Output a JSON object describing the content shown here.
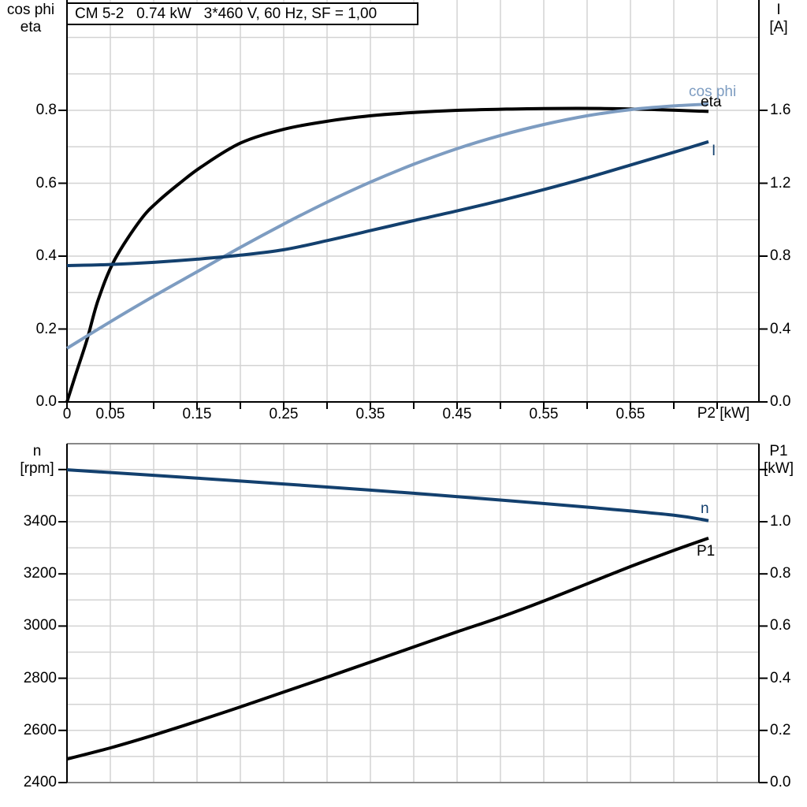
{
  "colors": {
    "background": "#ffffff",
    "grid": "#d3d3d3",
    "axis": "#000000",
    "chart_border_gray": "#878787",
    "eta_curve": "#000000",
    "cos_phi_curve": "#7d9cc1",
    "current_curve": "#13406e",
    "speed_curve": "#13406e",
    "p1_curve": "#000000"
  },
  "chart_data": [
    {
      "id": "top-chart",
      "type": "line",
      "title": "CM 5-2   0.74 kW   3*460 V, 60 Hz, SF = 1,00",
      "x_axis": {
        "label": "P2 [kW]",
        "min": 0,
        "max": 0.8,
        "tick_step": 0.05,
        "labeled_tick_values": [
          0,
          0.05,
          0.15,
          0.25,
          0.35,
          0.45,
          0.55,
          0.65
        ],
        "labeled_tick_labels": [
          "0",
          "0.05",
          "0.15",
          "0.25",
          "0.35",
          "0.45",
          "0.55",
          "0.65"
        ],
        "grid": true
      },
      "y_left": {
        "label_lines": [
          "cos phi",
          "eta"
        ],
        "min": 0,
        "max": 1.1,
        "grid_step": 0.1,
        "ticks": [
          0,
          0.2,
          0.4,
          0.6,
          0.8
        ],
        "tick_labels": [
          "0.0",
          "0.2",
          "0.4",
          "0.6",
          "0.8"
        ],
        "unlabeled_ticks": []
      },
      "y_right": {
        "label_lines": [
          "I",
          "[A]"
        ],
        "min": 0,
        "max": 2.2,
        "ticks": [
          0,
          0.4,
          0.8,
          1.2,
          1.6
        ],
        "tick_labels": [
          "0.0",
          "0.4",
          "0.8",
          "1.2",
          "1.6"
        ],
        "unlabeled_ticks": []
      },
      "series": [
        {
          "name": "eta",
          "axis": "left",
          "color": "#000000",
          "label_pos": [
            889,
            119
          ],
          "points": [
            [
              0,
              0
            ],
            [
              0.01,
              0.075
            ],
            [
              0.023,
              0.17
            ],
            [
              0.036,
              0.28
            ],
            [
              0.055,
              0.39
            ],
            [
              0.085,
              0.5
            ],
            [
              0.105,
              0.55
            ],
            [
              0.13,
              0.6
            ],
            [
              0.155,
              0.645
            ],
            [
              0.2,
              0.71
            ],
            [
              0.25,
              0.748
            ],
            [
              0.3,
              0.77
            ],
            [
              0.35,
              0.785
            ],
            [
              0.4,
              0.794
            ],
            [
              0.45,
              0.8
            ],
            [
              0.5,
              0.803
            ],
            [
              0.55,
              0.805
            ],
            [
              0.62,
              0.805
            ],
            [
              0.68,
              0.802
            ],
            [
              0.74,
              0.797
            ]
          ]
        },
        {
          "name": "cos phi",
          "axis": "left",
          "color": "#7d9cc1",
          "label_pos": [
            874,
            106
          ],
          "points": [
            [
              0,
              0.147
            ],
            [
              0.05,
              0.22
            ],
            [
              0.1,
              0.29
            ],
            [
              0.15,
              0.357
            ],
            [
              0.2,
              0.424
            ],
            [
              0.25,
              0.488
            ],
            [
              0.3,
              0.548
            ],
            [
              0.35,
              0.603
            ],
            [
              0.4,
              0.652
            ],
            [
              0.45,
              0.695
            ],
            [
              0.5,
              0.731
            ],
            [
              0.55,
              0.761
            ],
            [
              0.6,
              0.785
            ],
            [
              0.65,
              0.802
            ],
            [
              0.7,
              0.812
            ],
            [
              0.74,
              0.817
            ]
          ]
        },
        {
          "name": "I",
          "axis": "right",
          "color": "#13406e",
          "label_pos": [
            903,
            181
          ],
          "points": [
            [
              0,
              0.748
            ],
            [
              0.05,
              0.754
            ],
            [
              0.1,
              0.766
            ],
            [
              0.15,
              0.783
            ],
            [
              0.2,
              0.805
            ],
            [
              0.25,
              0.835
            ],
            [
              0.3,
              0.885
            ],
            [
              0.35,
              0.94
            ],
            [
              0.4,
              0.995
            ],
            [
              0.45,
              1.048
            ],
            [
              0.5,
              1.105
            ],
            [
              0.55,
              1.165
            ],
            [
              0.6,
              1.23
            ],
            [
              0.65,
              1.3
            ],
            [
              0.7,
              1.37
            ],
            [
              0.74,
              1.428
            ]
          ]
        }
      ]
    },
    {
      "id": "bottom-chart",
      "type": "line",
      "title": "",
      "x_axis": {
        "label": "",
        "min": 0,
        "max": 0.8,
        "tick_step": 0.05,
        "labeled_tick_values": [],
        "labeled_tick_labels": [],
        "grid": true
      },
      "y_left": {
        "label_lines": [
          "n",
          "[rpm]"
        ],
        "min": 2400,
        "max": 3700,
        "grid_step": 100,
        "ticks": [
          2400,
          2600,
          2800,
          3000,
          3200,
          3400
        ],
        "tick_labels": [
          "2400",
          "2600",
          "2800",
          "3000",
          "3200",
          "3400"
        ],
        "unlabeled_ticks": [
          3600
        ]
      },
      "y_right": {
        "label_lines": [
          "P1",
          "[kW]"
        ],
        "min": 0,
        "max": 1.3,
        "ticks": [
          0,
          0.2,
          0.4,
          0.6,
          0.8,
          1.0
        ],
        "tick_labels": [
          "0.0",
          "0.2",
          "0.4",
          "0.6",
          "0.8",
          "1.0"
        ],
        "unlabeled_ticks": [
          1.2
        ]
      },
      "series": [
        {
          "name": "n",
          "axis": "left",
          "color": "#13406e",
          "label_pos": [
            889,
            635
          ],
          "points": [
            [
              0,
              3599
            ],
            [
              0.1,
              3578
            ],
            [
              0.2,
              3556
            ],
            [
              0.3,
              3533
            ],
            [
              0.4,
              3509
            ],
            [
              0.5,
              3483
            ],
            [
              0.6,
              3456
            ],
            [
              0.7,
              3425
            ],
            [
              0.74,
              3404
            ]
          ]
        },
        {
          "name": "P1",
          "axis": "right",
          "color": "#000000",
          "label_pos": [
            884,
            689
          ],
          "points": [
            [
              0,
              0.09
            ],
            [
              0.05,
              0.133
            ],
            [
              0.1,
              0.182
            ],
            [
              0.15,
              0.235
            ],
            [
              0.2,
              0.29
            ],
            [
              0.25,
              0.347
            ],
            [
              0.3,
              0.404
            ],
            [
              0.35,
              0.462
            ],
            [
              0.4,
              0.52
            ],
            [
              0.45,
              0.578
            ],
            [
              0.5,
              0.634
            ],
            [
              0.55,
              0.696
            ],
            [
              0.6,
              0.762
            ],
            [
              0.65,
              0.828
            ],
            [
              0.7,
              0.89
            ],
            [
              0.74,
              0.937
            ]
          ]
        }
      ]
    }
  ]
}
